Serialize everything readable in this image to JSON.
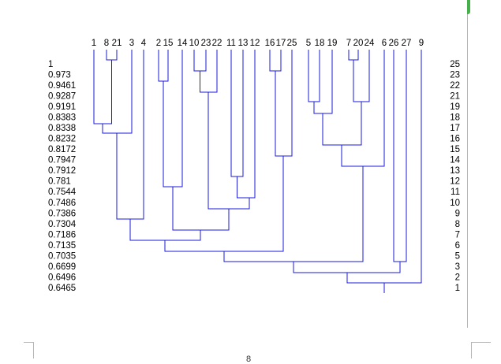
{
  "leaf_labels": [
    "1",
    "8",
    "21",
    "3",
    "4",
    "2",
    "15",
    "14",
    "10",
    "23",
    "22",
    "11",
    "13",
    "12",
    "16",
    "17",
    "25",
    "5",
    "18",
    "19",
    "7",
    "20",
    "24",
    "6",
    "26",
    "27",
    "9"
  ],
  "similarity_scale": [
    "1",
    "0.973",
    "0.9461",
    "0.9287",
    "0.9191",
    "0.8383",
    "0.8338",
    "0.8232",
    "0.8172",
    "0.7947",
    "0.7912",
    "0.781",
    "0.7544",
    "0.7486",
    "0.7386",
    "0.7304",
    "0.7186",
    "0.7135",
    "0.7035",
    "0.6699",
    "0.6496",
    "0.6465"
  ],
  "cluster_counts": [
    "25",
    "23",
    "22",
    "21",
    "19",
    "18",
    "17",
    "16",
    "15",
    "14",
    "13",
    "12",
    "11",
    "10",
    "9",
    "8",
    "7",
    "6",
    "5",
    "3",
    "2",
    "1"
  ],
  "page_number": "8",
  "colors": {
    "branch": "#1a1adc",
    "text": "#000000",
    "frame": "#b5b5b5",
    "accent": "#44b14b"
  }
}
